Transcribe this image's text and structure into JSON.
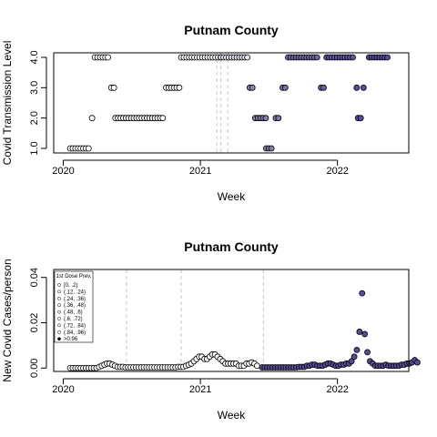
{
  "chart_data": [
    {
      "type": "scatter",
      "title": "Putnam County",
      "xlabel": "Week",
      "ylabel": "Covid Transmission Level",
      "xlim": [
        2019.93,
        2022.52
      ],
      "ylim": [
        0.85,
        4.15
      ],
      "x_ticks": [
        {
          "value": 2020,
          "label": "2020"
        },
        {
          "value": 2021,
          "label": "2021"
        },
        {
          "value": 2022,
          "label": "2022"
        }
      ],
      "y_ticks": [
        {
          "value": 1,
          "label": "1.0"
        },
        {
          "value": 2,
          "label": "2.0"
        },
        {
          "value": 3,
          "label": "3.0"
        },
        {
          "value": 4,
          "label": "4.0"
        }
      ],
      "vlines": [
        2021.12,
        2021.15,
        2021.2
      ],
      "vline_color": "#d0d0d0",
      "segments": [
        {
          "start": 2020.05,
          "end": 2020.2,
          "y": 1,
          "fill": "#ffffff"
        },
        {
          "start": 2020.21,
          "end": 2020.21,
          "y": 2,
          "fill": "#ffffff"
        },
        {
          "start": 2020.23,
          "end": 2020.33,
          "y": 4,
          "fill": "#ffffff"
        },
        {
          "start": 2020.35,
          "end": 2020.38,
          "y": 3,
          "fill": "#ffffff"
        },
        {
          "start": 2020.38,
          "end": 2020.74,
          "y": 2,
          "fill": "#ffffff"
        },
        {
          "start": 2020.75,
          "end": 2020.85,
          "y": 3,
          "fill": "#ffffff"
        },
        {
          "start": 2020.86,
          "end": 2021.15,
          "y": 4,
          "fill": "#ffffff"
        },
        {
          "start": 2021.15,
          "end": 2021.35,
          "y": 4,
          "fill": "#e6e4f0"
        },
        {
          "start": 2021.36,
          "end": 2021.39,
          "y": 3,
          "fill": "#8c86b0"
        },
        {
          "start": 2021.4,
          "end": 2021.48,
          "y": 2,
          "fill": "#8580ad"
        },
        {
          "start": 2021.48,
          "end": 2021.53,
          "y": 1,
          "fill": "#7e79a8"
        },
        {
          "start": 2021.55,
          "end": 2021.58,
          "y": 2,
          "fill": "#7e79a8"
        },
        {
          "start": 2021.6,
          "end": 2021.63,
          "y": 3,
          "fill": "#7a72a6"
        },
        {
          "start": 2021.64,
          "end": 2021.87,
          "y": 4,
          "fill": "#7267a6"
        },
        {
          "start": 2021.88,
          "end": 2021.9,
          "y": 3,
          "fill": "#6c5ea6"
        },
        {
          "start": 2021.92,
          "end": 2022.12,
          "y": 4,
          "fill": "#6552a3"
        },
        {
          "start": 2022.14,
          "end": 2022.14,
          "y": 3,
          "fill": "#5e4b9f"
        },
        {
          "start": 2022.15,
          "end": 2022.18,
          "y": 2,
          "fill": "#5e4b9f"
        },
        {
          "start": 2022.19,
          "end": 2022.19,
          "y": 3,
          "fill": "#5e4b9f"
        },
        {
          "start": 2022.23,
          "end": 2022.38,
          "y": 4,
          "fill": "#5a469b"
        }
      ]
    },
    {
      "type": "scatter",
      "title": "Putnam County",
      "xlabel": "Week",
      "ylabel": "New Covid Cases/person",
      "xlim": [
        2019.93,
        2022.52
      ],
      "ylim": [
        -0.0015,
        0.0435
      ],
      "x_ticks": [
        {
          "value": 2020,
          "label": "2020"
        },
        {
          "value": 2021,
          "label": "2021"
        },
        {
          "value": 2022,
          "label": "2022"
        }
      ],
      "y_ticks": [
        {
          "value": 0,
          "label": "0.00"
        },
        {
          "value": 0.02,
          "label": "0.02"
        },
        {
          "value": 0.04,
          "label": "0.04"
        }
      ],
      "vlines": [
        2020.46,
        2020.86,
        2021.46
      ],
      "vline_color": "#d0d0d0",
      "legend": {
        "title": "1st Dose Prev.",
        "position": "top-left",
        "entries": [
          {
            "label": "[0, .2)",
            "fill": "#ffffff"
          },
          {
            "label": "(.12, .24)",
            "fill": "#ffffff"
          },
          {
            "label": "(.24, .36)",
            "fill": "#ffffff"
          },
          {
            "label": "(.36, .48)",
            "fill": "#ffffff"
          },
          {
            "label": "(.48, .6)",
            "fill": "#ffffff"
          },
          {
            "label": "(.6, .72)",
            "fill": "#ffffff"
          },
          {
            "label": "(.72, .84)",
            "fill": "#ffffff"
          },
          {
            "label": "(.84, .96)",
            "fill": "#ffffff"
          },
          {
            "label": ">0.96",
            "fill": "#000000"
          }
        ]
      },
      "series": [
        {
          "start": 2020.05,
          "step": 0.0192,
          "values": [
            0,
            0,
            0,
            0,
            0,
            0,
            0,
            0,
            0,
            0,
            0,
            0.0005,
            0.001,
            0.0015,
            0.002,
            0.002,
            0.0015,
            0.001,
            0.0005,
            0.0005,
            0.0005,
            0.0003,
            0.0003,
            0.0003,
            0.0003,
            0.0003,
            0.0003,
            0.0003,
            0.0003,
            0.0003,
            0.0003,
            0.0003,
            0.0003,
            0.0003,
            0.0003,
            0.0003,
            0.0003,
            0.0003,
            0.0003,
            0.0003,
            0.0003,
            0.0005,
            0.0005,
            0.0005,
            0.001,
            0.0015,
            0.002,
            0.003,
            0.004,
            0.005,
            0.005,
            0.004,
            0.004,
            0.005,
            0.006,
            0.006,
            0.005,
            0.004,
            0.003,
            0.002,
            0.002,
            0.002,
            0.002,
            0.002,
            0.001,
            0.001,
            0.001,
            0.002,
            0.002,
            0.0025,
            0.002,
            0.001
          ],
          "fill": "#ffffff"
        },
        {
          "start": 2021.45,
          "step": 0.0192,
          "values": [
            0.0003,
            0.0003,
            0.0003,
            0.0003,
            0.0003,
            0.0003,
            0.0003,
            0.0003,
            0.0003,
            0.0003,
            0.0003,
            0.0003,
            0.0003,
            0.0003,
            0.0005,
            0.0005,
            0.0005,
            0.001,
            0.001,
            0.0015,
            0.0015,
            0.001,
            0.001,
            0.001,
            0.0015,
            0.002,
            0.002,
            0.0015,
            0.001,
            0.001,
            0.0015,
            0.0015,
            0.002,
            0.002,
            0.003,
            0.005,
            0.008,
            0.016,
            0.033,
            0.015,
            0.007,
            0.003,
            0.002,
            0.001,
            0.001,
            0.001,
            0.001,
            0.0015,
            0.001,
            0.001,
            0.001,
            0.001,
            0.001,
            0.0015,
            0.0015,
            0.002,
            0.002,
            0.0025,
            0.0035,
            0.0025
          ],
          "fill": "#5b4a96"
        }
      ]
    }
  ]
}
